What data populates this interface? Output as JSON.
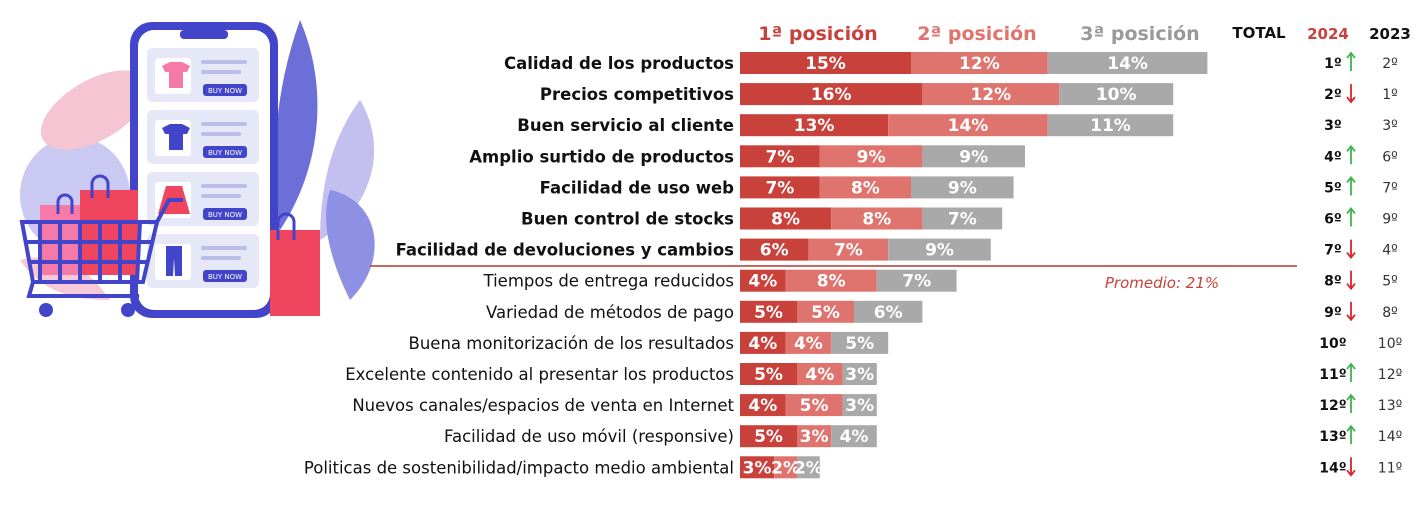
{
  "colors": {
    "pos1": "#c8413b",
    "pos2": "#df736d",
    "pos3": "#a9a9a9",
    "up": "#3cb44b",
    "down": "#d8242a",
    "divider": "#b5392f"
  },
  "headers": {
    "pos1": "1ª posición",
    "pos2": "2ª posición",
    "pos3": "3ª posición",
    "total": "TOTAL",
    "y2024": "2024",
    "y2023": "2023"
  },
  "average_label": "Promedio: 21%",
  "illustration": {
    "buy_label": "BUY NOW"
  },
  "chart_data": {
    "type": "bar",
    "orientation": "horizontal",
    "stacked": true,
    "categories": [
      "Calidad de los productos",
      "Precios competitivos",
      "Buen servicio al cliente",
      "Amplio surtido de productos",
      "Facilidad de uso web",
      "Buen control de stocks",
      "Facilidad de devoluciones y cambios",
      "Tiempos de entrega reducidos",
      "Variedad de métodos de pago",
      "Buena monitorización de los resultados",
      "Excelente contenido al presentar los productos",
      "Nuevos canales/espacios de venta en Internet",
      "Facilidad de uso móvil (responsive)",
      "Politicas de sostenibilidad/impacto medio ambiental"
    ],
    "bold_top": 7,
    "series": [
      {
        "name": "1ª posición",
        "values": [
          15,
          16,
          13,
          7,
          7,
          8,
          6,
          4,
          5,
          4,
          5,
          4,
          5,
          3
        ]
      },
      {
        "name": "2ª posición",
        "values": [
          12,
          12,
          14,
          9,
          8,
          8,
          7,
          8,
          5,
          4,
          4,
          5,
          3,
          2
        ]
      },
      {
        "name": "3ª posición",
        "values": [
          14,
          10,
          11,
          9,
          9,
          7,
          9,
          7,
          6,
          5,
          3,
          3,
          4,
          2
        ]
      }
    ],
    "labels": [
      [
        "15%",
        "12%",
        "14%"
      ],
      [
        "16%",
        "12%",
        "10%"
      ],
      [
        "13%",
        "14%",
        "11%"
      ],
      [
        "7%",
        "9%",
        "9%"
      ],
      [
        "7%",
        "8%",
        "9%"
      ],
      [
        "8%",
        "8%",
        "7%"
      ],
      [
        "6%",
        "7%",
        "9%"
      ],
      [
        "4%",
        "8%",
        "7%"
      ],
      [
        "5%",
        "5%",
        "6%"
      ],
      [
        "4%",
        "4%",
        "5%"
      ],
      [
        "5%",
        "4%",
        "3%"
      ],
      [
        "4%",
        "5%",
        "3%"
      ],
      [
        "5%",
        "3%",
        "4%"
      ],
      [
        "3%",
        "2%",
        "2%"
      ]
    ],
    "rank_2024": [
      "1º",
      "2º",
      "3º",
      "4º",
      "5º",
      "6º",
      "7º",
      "8º",
      "9º",
      "10º",
      "11º",
      "12º",
      "13º",
      "14º"
    ],
    "trend_2024": [
      "up",
      "down",
      "none",
      "up",
      "up",
      "up",
      "down",
      "down",
      "down",
      "none",
      "up",
      "up",
      "up",
      "down"
    ],
    "rank_2023": [
      "2º",
      "1º",
      "3º",
      "6º",
      "7º",
      "9º",
      "4º",
      "5º",
      "8º",
      "10º",
      "12º",
      "13º",
      "14º",
      "11º"
    ]
  }
}
